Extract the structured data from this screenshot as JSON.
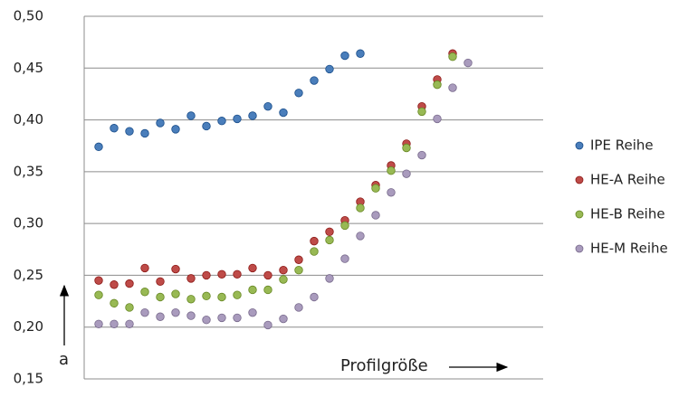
{
  "chart_data": {
    "type": "scatter",
    "annotations": [
      "a",
      "Profilgröße"
    ],
    "categories": [
      null,
      null,
      null,
      null,
      null,
      null,
      null,
      null,
      null,
      null,
      null,
      null,
      null,
      null,
      null,
      null,
      null,
      null,
      null,
      null,
      null,
      null,
      null,
      null,
      null
    ],
    "series": [
      {
        "name": "IPE Reihe",
        "color": "#4a7ebb",
        "values": [
          0.374,
          0.392,
          0.389,
          0.387,
          0.397,
          0.391,
          0.404,
          0.394,
          0.399,
          0.401,
          0.404,
          0.413,
          0.407,
          0.426,
          0.438,
          0.449,
          0.462,
          0.464,
          null,
          null,
          null,
          null,
          null,
          null,
          null
        ]
      },
      {
        "name": "HE-A Reihe",
        "color": "#be4b48",
        "values": [
          0.245,
          0.241,
          0.242,
          0.257,
          0.244,
          0.256,
          0.247,
          0.25,
          0.251,
          0.251,
          0.257,
          0.25,
          0.255,
          0.265,
          0.283,
          0.292,
          0.303,
          0.321,
          0.337,
          0.356,
          0.377,
          0.413,
          0.439,
          0.464,
          null
        ]
      },
      {
        "name": "HE-B Reihe",
        "color": "#98b954",
        "values": [
          0.231,
          0.223,
          0.219,
          0.234,
          0.229,
          0.232,
          0.227,
          0.23,
          0.229,
          0.231,
          0.236,
          0.236,
          0.246,
          0.255,
          0.273,
          0.284,
          0.298,
          0.315,
          0.334,
          0.351,
          0.373,
          0.408,
          0.434,
          0.461,
          null
        ]
      },
      {
        "name": "HE-M Reihe",
        "color": "#a99bbd",
        "values": [
          0.203,
          0.203,
          0.203,
          0.214,
          0.21,
          0.214,
          0.211,
          0.207,
          0.209,
          0.209,
          0.214,
          0.202,
          0.208,
          0.219,
          0.229,
          0.247,
          0.266,
          0.288,
          0.308,
          0.33,
          0.348,
          0.366,
          0.401,
          0.431,
          0.455
        ]
      }
    ],
    "ylim": [
      0.15,
      0.5
    ],
    "yticks": [
      {
        "value": 0.15,
        "label": "0,15"
      },
      {
        "value": 0.2,
        "label": "0,20"
      },
      {
        "value": 0.25,
        "label": "0,25"
      },
      {
        "value": 0.3,
        "label": "0,30"
      },
      {
        "value": 0.35,
        "label": "0,35"
      },
      {
        "value": 0.4,
        "label": "0,40"
      },
      {
        "value": 0.45,
        "label": "0,45"
      },
      {
        "value": 0.5,
        "label": "0,50"
      }
    ],
    "grid": true,
    "legend": "right"
  }
}
